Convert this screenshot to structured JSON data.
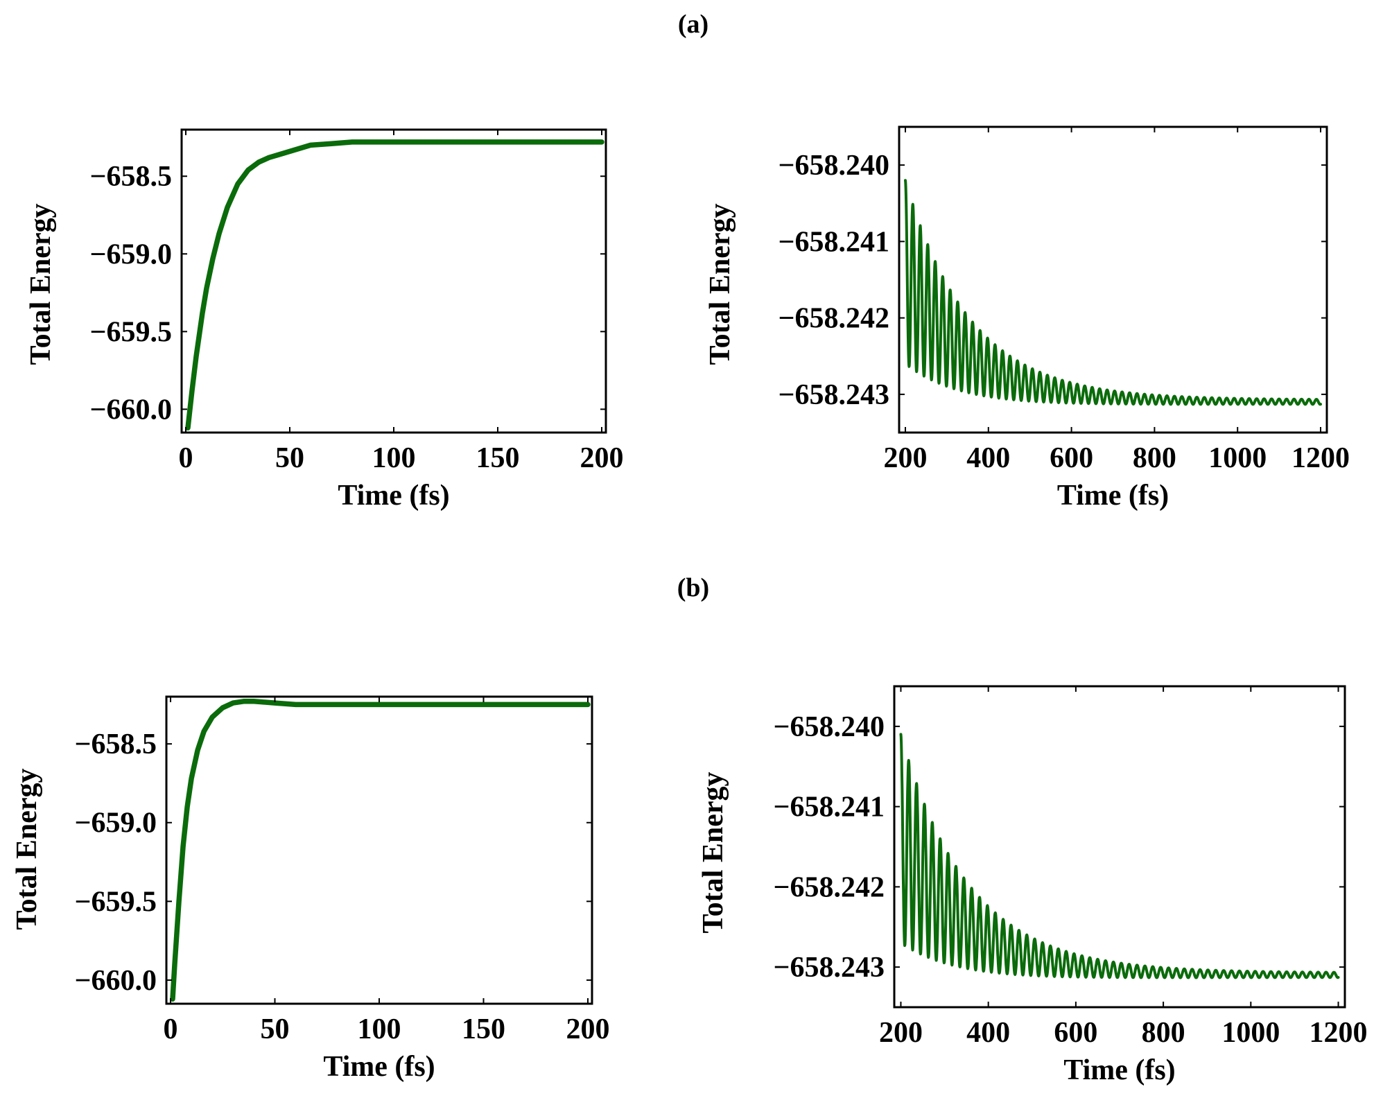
{
  "panels": [
    {
      "label": "(a)"
    },
    {
      "label": "(b)"
    }
  ],
  "chart_data": [
    {
      "type": "line",
      "panel": "(a)",
      "xlabel": "Time (fs)",
      "ylabel": "Total Energy",
      "xlim": [
        -2,
        202
      ],
      "ylim": [
        -660.15,
        -658.2
      ],
      "xticks": [
        0,
        50,
        100,
        150,
        200
      ],
      "xtick_labels": [
        "0",
        "50",
        "100",
        "150",
        "200"
      ],
      "yticks": [
        -658.5,
        -659.0,
        -659.5,
        -660.0
      ],
      "ytick_labels": [
        "−658.5",
        "−659.0",
        "−659.5",
        "−660.0"
      ],
      "line_color": "#0a6b0a",
      "series": [
        {
          "x": [
            1,
            3,
            5,
            8,
            10,
            13,
            16,
            20,
            25,
            30,
            35,
            40,
            45,
            50,
            55,
            60,
            70,
            80,
            90,
            100,
            110,
            120,
            130,
            140,
            150,
            160,
            170,
            180,
            190,
            200
          ],
          "values": [
            -660.12,
            -659.88,
            -659.66,
            -659.38,
            -659.22,
            -659.03,
            -658.87,
            -658.7,
            -658.55,
            -658.46,
            -658.41,
            -658.38,
            -658.36,
            -658.34,
            -658.32,
            -658.3,
            -658.29,
            -658.28,
            -658.28,
            -658.28,
            -658.28,
            -658.28,
            -658.28,
            -658.28,
            -658.28,
            -658.28,
            -658.28,
            -658.28,
            -658.28,
            -658.28
          ]
        }
      ]
    },
    {
      "type": "line",
      "panel": "(a)",
      "xlabel": "Time (fs)",
      "ylabel": "Total Energy",
      "xlim": [
        185,
        1215
      ],
      "ylim": [
        -658.2435,
        -658.2395
      ],
      "xticks": [
        200,
        400,
        600,
        800,
        1000,
        1200
      ],
      "xtick_labels": [
        "200",
        "400",
        "600",
        "800",
        "1000",
        "1200"
      ],
      "yticks": [
        -658.24,
        -658.241,
        -658.242,
        -658.243
      ],
      "ytick_labels": [
        "−658.240",
        "−658.241",
        "−658.242",
        "−658.243"
      ],
      "line_color": "#0a6b0a",
      "oscillation": {
        "start_x": 200,
        "end_x": 1200,
        "period": 18,
        "center_start": -658.2414,
        "center_end": -658.2431,
        "center_decay": 150,
        "amp_start": 0.0024,
        "amp_end": 6e-05,
        "amp_decay": 165
      }
    },
    {
      "type": "line",
      "panel": "(b)",
      "xlabel": "Time (fs)",
      "ylabel": "Total Energy",
      "xlim": [
        -2,
        202
      ],
      "ylim": [
        -660.15,
        -658.2
      ],
      "xticks": [
        0,
        50,
        100,
        150,
        200
      ],
      "xtick_labels": [
        "0",
        "50",
        "100",
        "150",
        "200"
      ],
      "yticks": [
        -658.5,
        -659.0,
        -659.5,
        -660.0
      ],
      "ytick_labels": [
        "−658.5",
        "−659.0",
        "−659.5",
        "−660.0"
      ],
      "line_color": "#0a6b0a",
      "series": [
        {
          "x": [
            1,
            2,
            4,
            6,
            8,
            10,
            13,
            16,
            20,
            25,
            30,
            35,
            40,
            50,
            60,
            70,
            80,
            90,
            100,
            120,
            140,
            160,
            180,
            200
          ],
          "values": [
            -660.12,
            -659.9,
            -659.5,
            -659.15,
            -658.9,
            -658.72,
            -658.54,
            -658.42,
            -658.33,
            -658.27,
            -658.24,
            -658.23,
            -658.23,
            -658.24,
            -658.25,
            -658.25,
            -658.25,
            -658.25,
            -658.25,
            -658.25,
            -658.25,
            -658.25,
            -658.25,
            -658.25
          ]
        }
      ]
    },
    {
      "type": "line",
      "panel": "(b)",
      "xlabel": "Time (fs)",
      "ylabel": "Total Energy",
      "xlim": [
        185,
        1215
      ],
      "ylim": [
        -658.2435,
        -658.2395
      ],
      "xticks": [
        200,
        400,
        600,
        800,
        1000,
        1200
      ],
      "xtick_labels": [
        "200",
        "400",
        "600",
        "800",
        "1000",
        "1200"
      ],
      "yticks": [
        -658.24,
        -658.241,
        -658.242,
        -658.243
      ],
      "ytick_labels": [
        "−658.240",
        "−658.241",
        "−658.242",
        "−658.243"
      ],
      "line_color": "#0a6b0a",
      "oscillation": {
        "start_x": 200,
        "end_x": 1200,
        "period": 18,
        "center_start": -658.2414,
        "center_end": -658.2431,
        "center_decay": 150,
        "amp_start": 0.0026,
        "amp_end": 6e-05,
        "amp_decay": 165
      }
    }
  ]
}
